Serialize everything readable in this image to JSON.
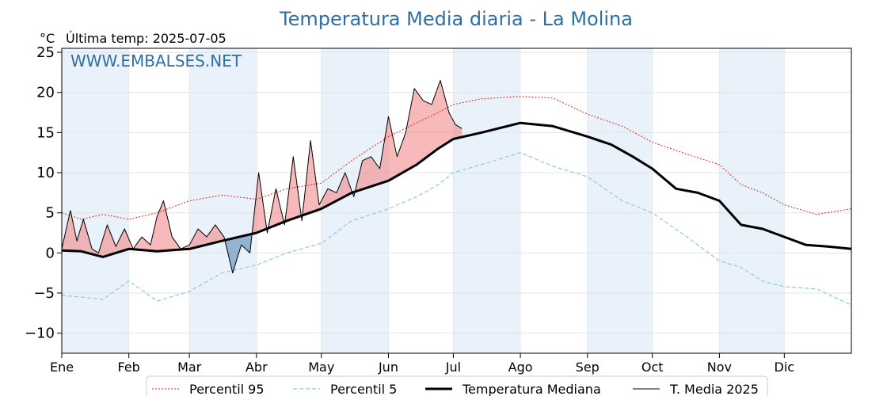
{
  "chart_data": {
    "type": "line",
    "title": "Temperatura Media diaria - La Molina",
    "unit": "°C",
    "last_temp_label": "Última temp: 2025-07-05",
    "watermark": "WWW.EMBALSES.NET",
    "ylim": [
      -12.5,
      25.5
    ],
    "yticks": [
      {
        "value": 25,
        "label": "25"
      },
      {
        "value": 20,
        "label": "20"
      },
      {
        "value": 15,
        "label": "15"
      },
      {
        "value": 10,
        "label": "10"
      },
      {
        "value": 5,
        "label": "5"
      },
      {
        "value": 0,
        "label": "0"
      },
      {
        "value": -5,
        "label": "−5"
      },
      {
        "value": -10,
        "label": "−10"
      }
    ],
    "xlim": [
      1,
      366
    ],
    "months": [
      {
        "label": "Ene",
        "day": 1
      },
      {
        "label": "Feb",
        "day": 32
      },
      {
        "label": "Mar",
        "day": 60
      },
      {
        "label": "Abr",
        "day": 91
      },
      {
        "label": "May",
        "day": 121
      },
      {
        "label": "Jun",
        "day": 152
      },
      {
        "label": "Jul",
        "day": 182
      },
      {
        "label": "Ago",
        "day": 213
      },
      {
        "label": "Sep",
        "day": 244
      },
      {
        "label": "Oct",
        "day": 274
      },
      {
        "label": "Nov",
        "day": 305
      },
      {
        "label": "Dic",
        "day": 335
      }
    ],
    "grid": true,
    "legend_position": "bottom",
    "colors": {
      "p95": "#e8231e",
      "p5": "#8ecad8",
      "median": "#000000",
      "current": "#000000",
      "above_fill": "#f08080",
      "below_fill": "#4a7fb0",
      "band": "#e9f2fa",
      "title": "#2f6fa3"
    },
    "series": [
      {
        "name": "Percentil 95",
        "style": "dotted-red",
        "x": [
          1,
          10,
          20,
          32,
          45,
          60,
          75,
          91,
          105,
          121,
          135,
          152,
          165,
          175,
          182,
          195,
          213,
          228,
          244,
          260,
          274,
          290,
          305,
          315,
          325,
          335,
          350,
          366
        ],
        "values": [
          5.0,
          4.2,
          4.8,
          4.2,
          5.0,
          6.5,
          7.2,
          6.7,
          8.0,
          8.7,
          11.5,
          14.5,
          16.2,
          17.5,
          18.5,
          19.2,
          19.5,
          19.3,
          17.3,
          15.8,
          13.8,
          12.3,
          11.0,
          8.5,
          7.5,
          6.0,
          4.8,
          5.5
        ]
      },
      {
        "name": "Percentil 5",
        "style": "dashed-lightblue",
        "x": [
          1,
          10,
          20,
          32,
          45,
          60,
          75,
          91,
          105,
          121,
          135,
          152,
          165,
          175,
          182,
          195,
          213,
          228,
          244,
          260,
          274,
          290,
          305,
          315,
          325,
          335,
          350,
          366
        ],
        "values": [
          -5.3,
          -5.5,
          -5.8,
          -3.5,
          -6.0,
          -4.8,
          -2.5,
          -1.5,
          0.0,
          1.2,
          4.0,
          5.5,
          7.0,
          8.5,
          10.0,
          11.0,
          12.5,
          10.8,
          9.5,
          6.5,
          5.0,
          2.0,
          -1.0,
          -1.8,
          -3.5,
          -4.2,
          -4.5,
          -6.5
        ]
      },
      {
        "name": "Temperatura Mediana",
        "style": "thick-black",
        "x": [
          1,
          10,
          20,
          32,
          45,
          60,
          75,
          91,
          105,
          121,
          135,
          152,
          165,
          175,
          182,
          195,
          213,
          228,
          244,
          255,
          265,
          274,
          285,
          295,
          305,
          315,
          325,
          335,
          345,
          355,
          366
        ],
        "values": [
          0.3,
          0.2,
          -0.5,
          0.5,
          0.2,
          0.5,
          1.5,
          2.5,
          4.0,
          5.5,
          7.5,
          9.0,
          11.0,
          13.0,
          14.2,
          15.0,
          16.2,
          15.8,
          14.5,
          13.5,
          12.0,
          10.5,
          8.0,
          7.5,
          6.5,
          3.5,
          3.0,
          2.0,
          1.0,
          0.8,
          0.5
        ]
      },
      {
        "name": "T. Media 2025",
        "style": "thin-black",
        "x": [
          1,
          5,
          8,
          11,
          15,
          18,
          22,
          26,
          30,
          34,
          38,
          42,
          45,
          48,
          52,
          56,
          60,
          64,
          68,
          72,
          76,
          80,
          84,
          88,
          92,
          96,
          100,
          104,
          108,
          112,
          116,
          120,
          124,
          128,
          132,
          136,
          140,
          144,
          148,
          152,
          156,
          160,
          164,
          168,
          172,
          176,
          180,
          183,
          186
        ],
        "values": [
          0.5,
          5.3,
          1.5,
          4.2,
          0.5,
          0.0,
          3.5,
          0.8,
          3.0,
          0.5,
          2.0,
          1.0,
          4.5,
          6.5,
          2.0,
          0.5,
          1.0,
          3.0,
          2.0,
          3.5,
          2.0,
          -2.5,
          1.0,
          0.0,
          10.0,
          2.5,
          8.0,
          3.5,
          12.0,
          4.0,
          14.0,
          6.0,
          8.0,
          7.5,
          10.0,
          7.0,
          11.5,
          12.0,
          10.5,
          17.0,
          12.0,
          15.0,
          20.5,
          19.0,
          18.5,
          21.5,
          17.5,
          16.0,
          15.5
        ]
      }
    ]
  },
  "legend": {
    "p95": "Percentil 95",
    "p5": "Percentil 5",
    "median": "Temperatura Mediana",
    "current": "T. Media 2025"
  }
}
